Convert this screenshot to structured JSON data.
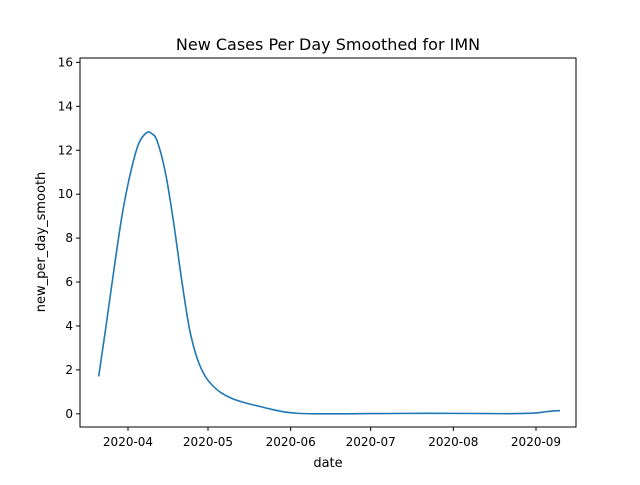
{
  "chart_data": {
    "type": "line",
    "title": "New Cases Per Day Smoothed for IMN",
    "xlabel": "date",
    "ylabel": "new_per_day_smooth",
    "x_ticks": [
      "2020-04",
      "2020-05",
      "2020-06",
      "2020-07",
      "2020-08",
      "2020-09"
    ],
    "y_ticks": [
      "0",
      "2",
      "4",
      "6",
      "8",
      "10",
      "12",
      "14",
      "16"
    ],
    "xlim": [
      "2020-03-14",
      "2020-09-16"
    ],
    "ylim": [
      -0.6,
      16.2
    ],
    "grid": false,
    "line_color": "#1f77b4",
    "series": [
      {
        "x": [
          "2020-03-21",
          "2020-03-24",
          "2020-03-27",
          "2020-03-30",
          "2020-04-02",
          "2020-04-05",
          "2020-04-08",
          "2020-04-10",
          "2020-04-12",
          "2020-04-15",
          "2020-04-18",
          "2020-04-21",
          "2020-04-24",
          "2020-04-27",
          "2020-04-30",
          "2020-05-03",
          "2020-05-06",
          "2020-05-10",
          "2020-05-15",
          "2020-05-20",
          "2020-05-25",
          "2020-05-30",
          "2020-06-04",
          "2020-06-10",
          "2020-06-20",
          "2020-07-01",
          "2020-07-15",
          "2020-08-01",
          "2020-08-15",
          "2020-08-25",
          "2020-09-01",
          "2020-09-05",
          "2020-09-10"
        ],
        "y": [
          1.7,
          4.2,
          6.8,
          9.2,
          11.0,
          12.3,
          12.8,
          12.75,
          12.4,
          11.0,
          8.8,
          6.2,
          3.9,
          2.5,
          1.7,
          1.25,
          0.95,
          0.7,
          0.5,
          0.35,
          0.2,
          0.08,
          0.02,
          0.0,
          0.0,
          0.01,
          0.02,
          0.02,
          0.01,
          0.01,
          0.04,
          0.1,
          0.15
        ]
      }
    ]
  }
}
